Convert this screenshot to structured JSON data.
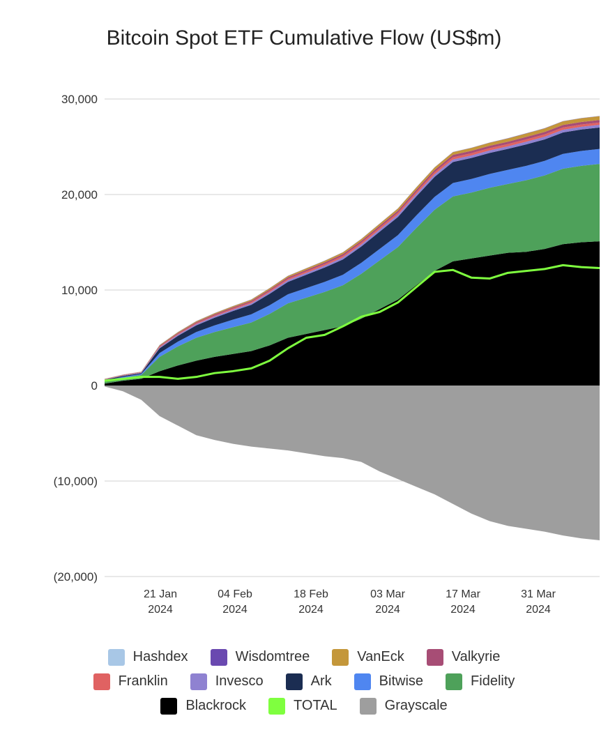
{
  "chart_data": {
    "type": "area",
    "title": "Bitcoin Spot ETF Cumulative Flow (US$m)",
    "xlabel": "",
    "ylabel": "",
    "ylim": [
      -20000,
      30000
    ],
    "yticks": [
      30000,
      20000,
      10000,
      0,
      -10000,
      -20000
    ],
    "ytick_labels": [
      "30,000",
      "20,000",
      "10,000",
      "0",
      "(10,000)",
      "(20,000)"
    ],
    "x_dates": [
      "11 Jan",
      "14 Jan",
      "17 Jan",
      "21 Jan",
      "24 Jan",
      "28 Jan",
      "31 Jan",
      "04 Feb",
      "07 Feb",
      "11 Feb",
      "14 Feb",
      "18 Feb",
      "21 Feb",
      "25 Feb",
      "28 Feb",
      "03 Mar",
      "06 Mar",
      "10 Mar",
      "13 Mar",
      "17 Mar",
      "20 Mar",
      "24 Mar",
      "27 Mar",
      "31 Mar",
      "03 Apr",
      "07 Apr",
      "10 Apr",
      "12 Apr"
    ],
    "x_ticks": [
      {
        "line1": "21 Jan",
        "line2": "2024"
      },
      {
        "line1": "04 Feb",
        "line2": "2024"
      },
      {
        "line1": "18 Feb",
        "line2": "2024"
      },
      {
        "line1": "03 Mar",
        "line2": "2024"
      },
      {
        "line1": "17 Mar",
        "line2": "2024"
      },
      {
        "line1": "31 Mar",
        "line2": "2024"
      }
    ],
    "positive_stack": [
      {
        "name": "Blackrock",
        "color": "#000000",
        "values": [
          200,
          500,
          700,
          1500,
          2100,
          2600,
          3000,
          3300,
          3600,
          4200,
          5000,
          5400,
          5800,
          6200,
          7000,
          8000,
          9000,
          10500,
          12000,
          13000,
          13300,
          13600,
          13900,
          14000,
          14300,
          14800,
          15000,
          15100
        ]
      },
      {
        "name": "Fidelity",
        "color": "#4ea15a",
        "values": [
          200,
          300,
          400,
          1500,
          2000,
          2400,
          2600,
          2800,
          3000,
          3300,
          3600,
          3800,
          4000,
          4300,
          4700,
          5100,
          5500,
          6000,
          6400,
          6800,
          6900,
          7100,
          7200,
          7500,
          7700,
          7900,
          8000,
          8100
        ]
      },
      {
        "name": "Bitwise",
        "color": "#4f86f0",
        "values": [
          100,
          100,
          100,
          400,
          500,
          600,
          700,
          800,
          850,
          900,
          950,
          1000,
          1050,
          1100,
          1150,
          1200,
          1250,
          1300,
          1350,
          1400,
          1420,
          1450,
          1480,
          1500,
          1520,
          1550,
          1560,
          1570
        ]
      },
      {
        "name": "Ark",
        "color": "#1b2d52",
        "values": [
          100,
          100,
          100,
          500,
          600,
          700,
          800,
          900,
          1000,
          1200,
          1300,
          1400,
          1500,
          1600,
          1700,
          1800,
          1900,
          2000,
          2100,
          2200,
          2200,
          2200,
          2200,
          2250,
          2250,
          2250,
          2250,
          2250
        ]
      },
      {
        "name": "Invesco",
        "color": "#8f82d1",
        "values": [
          30,
          40,
          50,
          100,
          120,
          130,
          140,
          150,
          160,
          170,
          180,
          190,
          200,
          210,
          220,
          230,
          240,
          250,
          260,
          270,
          270,
          270,
          270,
          280,
          280,
          280,
          280,
          280
        ]
      },
      {
        "name": "Franklin",
        "color": "#e06262",
        "values": [
          20,
          30,
          30,
          70,
          80,
          90,
          100,
          110,
          120,
          130,
          140,
          150,
          160,
          170,
          180,
          190,
          200,
          210,
          220,
          230,
          230,
          230,
          230,
          240,
          240,
          240,
          240,
          240
        ]
      },
      {
        "name": "Valkyrie",
        "color": "#a74d75",
        "values": [
          20,
          30,
          30,
          80,
          100,
          110,
          120,
          130,
          140,
          150,
          160,
          170,
          180,
          190,
          200,
          210,
          220,
          230,
          240,
          250,
          250,
          250,
          250,
          260,
          260,
          260,
          260,
          260
        ]
      },
      {
        "name": "VanEck",
        "color": "#c4973a",
        "values": [
          20,
          30,
          30,
          70,
          80,
          90,
          100,
          110,
          120,
          130,
          140,
          150,
          160,
          170,
          180,
          200,
          220,
          240,
          260,
          280,
          300,
          320,
          340,
          360,
          370,
          380,
          390,
          400
        ]
      },
      {
        "name": "Wisdomtree",
        "color": "#6a49b0",
        "values": [
          10,
          10,
          10,
          20,
          20,
          20,
          20,
          20,
          20,
          20,
          20,
          20,
          20,
          20,
          20,
          20,
          20,
          20,
          20,
          20,
          20,
          20,
          20,
          20,
          20,
          20,
          20,
          20
        ]
      },
      {
        "name": "Hashdex",
        "color": "#a8c7e6",
        "values": [
          5,
          5,
          5,
          10,
          10,
          10,
          10,
          10,
          10,
          10,
          10,
          10,
          10,
          10,
          10,
          10,
          10,
          10,
          10,
          10,
          10,
          10,
          10,
          10,
          10,
          10,
          10,
          10
        ]
      }
    ],
    "negative_series": {
      "name": "Grayscale",
      "color": "#9e9e9e",
      "values": [
        -100,
        -600,
        -1500,
        -3200,
        -4200,
        -5200,
        -5700,
        -6100,
        -6400,
        -6600,
        -6800,
        -7100,
        -7400,
        -7600,
        -8000,
        -9000,
        -9800,
        -10600,
        -11400,
        -12400,
        -13400,
        -14200,
        -14700,
        -15000,
        -15300,
        -15700,
        -16000,
        -16200
      ]
    },
    "total_series": {
      "name": "TOTAL",
      "color": "#7fff3f",
      "values": [
        500,
        700,
        900,
        900,
        700,
        900,
        1300,
        1500,
        1800,
        2600,
        3900,
        5000,
        5300,
        6200,
        7200,
        7700,
        8700,
        10300,
        11900,
        12100,
        11300,
        11200,
        11800,
        12000,
        12200,
        12600,
        12400,
        12300
      ]
    },
    "legend": [
      [
        {
          "name": "Hashdex",
          "color": "#a8c7e6"
        },
        {
          "name": "Wisdomtree",
          "color": "#6a49b0"
        },
        {
          "name": "VanEck",
          "color": "#c4973a"
        },
        {
          "name": "Valkyrie",
          "color": "#a74d75"
        }
      ],
      [
        {
          "name": "Franklin",
          "color": "#e06262"
        },
        {
          "name": "Invesco",
          "color": "#8f82d1"
        },
        {
          "name": "Ark",
          "color": "#1b2d52"
        },
        {
          "name": "Bitwise",
          "color": "#4f86f0"
        },
        {
          "name": "Fidelity",
          "color": "#4ea15a"
        }
      ],
      [
        {
          "name": "Blackrock",
          "color": "#000000"
        },
        {
          "name": "TOTAL",
          "color": "#7fff3f"
        },
        {
          "name": "Grayscale",
          "color": "#9e9e9e"
        }
      ]
    ]
  }
}
